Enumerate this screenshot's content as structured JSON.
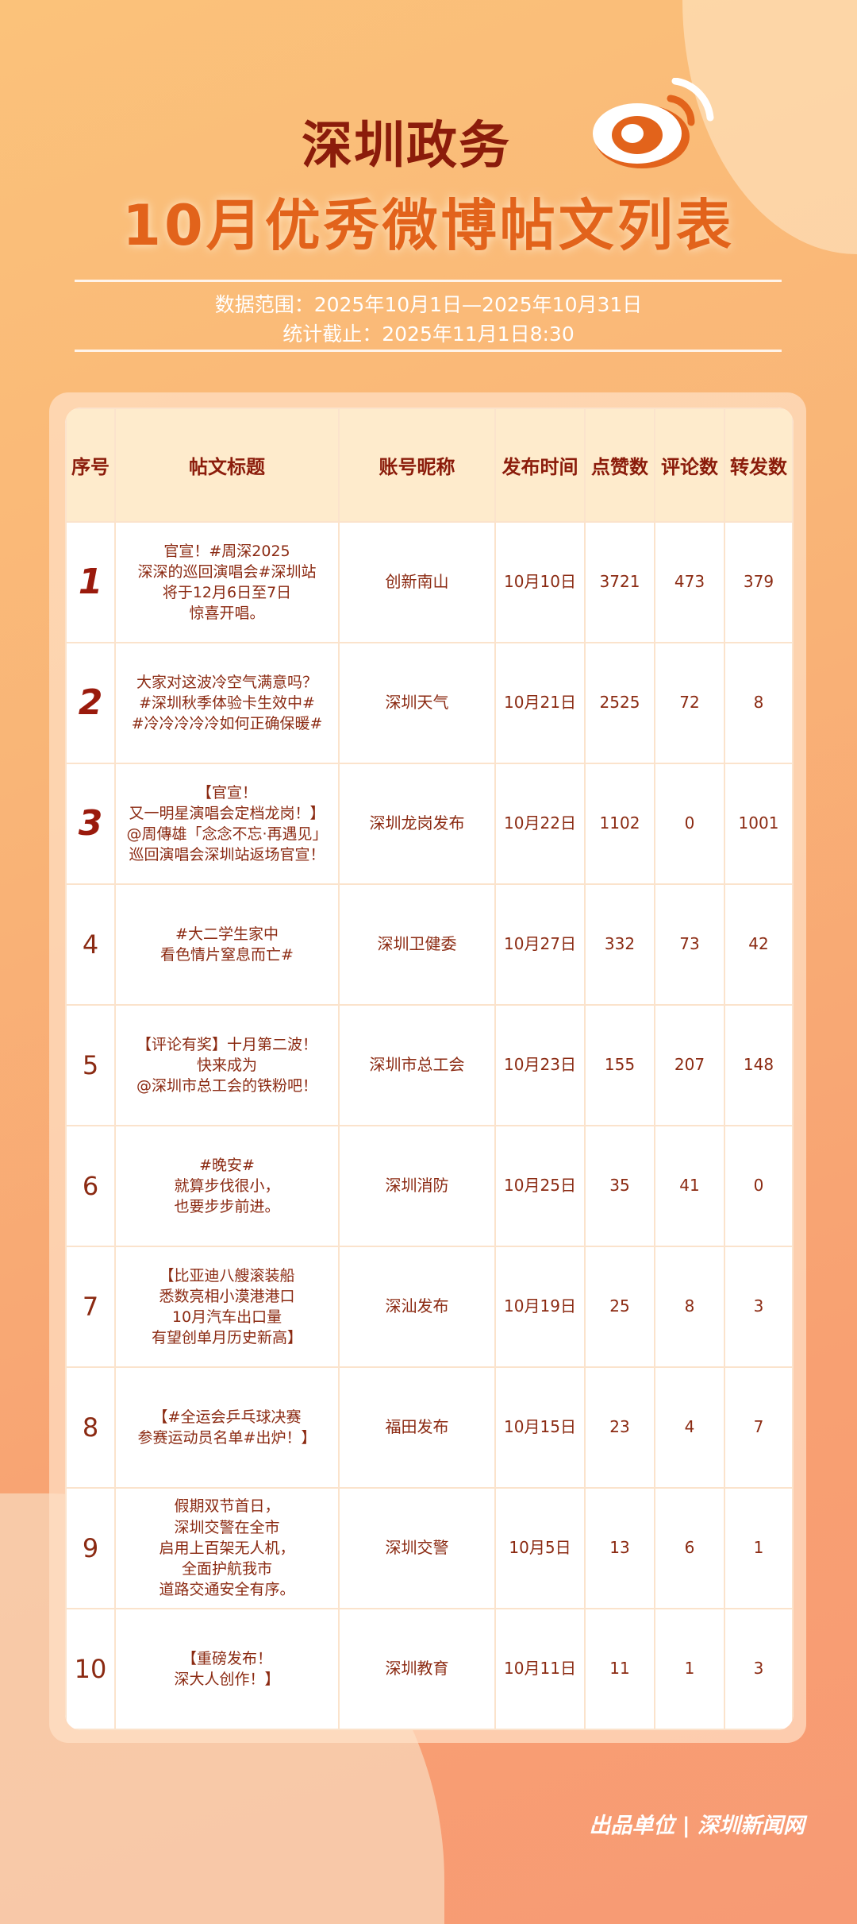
{
  "header": {
    "title_line1": "深圳政务",
    "title_line2": "10月优秀微博帖文列表",
    "data_range": "数据范围：2025年10月1日—2025年10月31日",
    "cutoff": "统计截止：2025年11月1日8:30",
    "logo_icon": "weibo-logo-icon"
  },
  "table": {
    "columns": [
      "序号",
      "帖文标题",
      "账号昵称",
      "发布时间",
      "点赞数",
      "评论数",
      "转发数"
    ],
    "rows": [
      {
        "rank": "1",
        "title": "官宣！#周深2025\n深深的巡回演唱会#深圳站\n将于12月6日至7日\n惊喜开唱。",
        "account": "创新南山",
        "date": "10月10日",
        "likes": "3721",
        "comments": "473",
        "reposts": "379"
      },
      {
        "rank": "2",
        "title": "大家对这波冷空气满意吗？\n#深圳秋季体验卡生效中#\n#冷冷冷冷冷如何正确保暖#",
        "account": "深圳天气",
        "date": "10月21日",
        "likes": "2525",
        "comments": "72",
        "reposts": "8"
      },
      {
        "rank": "3",
        "title": "【官宣！\n又一明星演唱会定档龙岗！】\n@周傳雄「念念不忘·再遇见」\n巡回演唱会深圳站返场官宣！",
        "account": "深圳龙岗发布",
        "date": "10月22日",
        "likes": "1102",
        "comments": "0",
        "reposts": "1001"
      },
      {
        "rank": "4",
        "title": "#大二学生家中\n看色情片窒息而亡#",
        "account": "深圳卫健委",
        "date": "10月27日",
        "likes": "332",
        "comments": "73",
        "reposts": "42"
      },
      {
        "rank": "5",
        "title": "【评论有奖】十月第二波！\n快来成为\n@深圳市总工会的铁粉吧！",
        "account": "深圳市总工会",
        "date": "10月23日",
        "likes": "155",
        "comments": "207",
        "reposts": "148"
      },
      {
        "rank": "6",
        "title": "#晚安#\n就算步伐很小，\n也要步步前进。",
        "account": "深圳消防",
        "date": "10月25日",
        "likes": "35",
        "comments": "41",
        "reposts": "0"
      },
      {
        "rank": "7",
        "title": "【比亚迪八艘滚装船\n悉数亮相小漠港港口\n10月汽车出口量\n有望创单月历史新高】",
        "account": "深汕发布",
        "date": "10月19日",
        "likes": "25",
        "comments": "8",
        "reposts": "3"
      },
      {
        "rank": "8",
        "title": "【#全运会乒乓球决赛\n参赛运动员名单#出炉！】",
        "account": "福田发布",
        "date": "10月15日",
        "likes": "23",
        "comments": "4",
        "reposts": "7"
      },
      {
        "rank": "9",
        "title": "假期双节首日，\n深圳交警在全市\n启用上百架无人机，\n全面护航我市\n道路交通安全有序。",
        "account": "深圳交警",
        "date": "10月5日",
        "likes": "13",
        "comments": "6",
        "reposts": "1"
      },
      {
        "rank": "10",
        "title": "【重磅发布！\n深大人创作！】",
        "account": "深圳教育",
        "date": "10月11日",
        "likes": "11",
        "comments": "1",
        "reposts": "3"
      }
    ]
  },
  "footer": {
    "credit": "出品单位 | 深圳新闻网"
  },
  "colors": {
    "title_dark": "#8b1c0b",
    "title_orange": "#e2631b",
    "header_bg": "#feebcc",
    "text": "#8b2a12"
  }
}
